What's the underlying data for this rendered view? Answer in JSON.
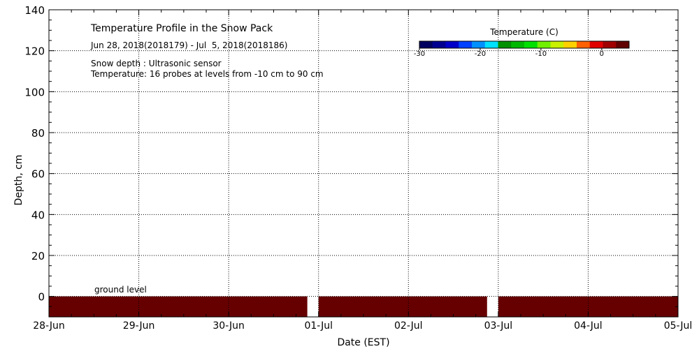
{
  "chart_data": {
    "type": "heatmap",
    "title": "Temperature Profile in the Snow Pack",
    "subtitle": "Jun 28, 2018(2018179) - Jul  5, 2018(2018186)",
    "notes": [
      "Snow depth : Ultrasonic sensor",
      "Temperature: 16 probes at levels from -10 cm to 90 cm"
    ],
    "annotation": "ground level",
    "xlabel": "Date (EST)",
    "ylabel": "Depth, cm",
    "x_ticks": [
      "28-Jun",
      "29-Jun",
      "30-Jun",
      "01-Jul",
      "02-Jul",
      "03-Jul",
      "04-Jul",
      "05-Jul"
    ],
    "xlim": [
      "2018-06-28",
      "2018-07-05"
    ],
    "ylim": [
      -10,
      140
    ],
    "y_ticks": [
      0,
      20,
      40,
      60,
      80,
      100,
      120,
      140
    ],
    "grid": true,
    "colorbar": {
      "title": "Temperature (C)",
      "ticks": [
        -30,
        -20,
        -10,
        0
      ],
      "colors": [
        "#000060",
        "#000090",
        "#0000c8",
        "#0040ff",
        "#0090ff",
        "#00e0ff",
        "#009000",
        "#00b800",
        "#00e000",
        "#70f000",
        "#c8f000",
        "#ffd000",
        "#ff6000",
        "#e00000",
        "#a00000",
        "#600000"
      ]
    },
    "data_fill_color": "#660000",
    "segments": [
      {
        "start": "2018-06-28 00:00",
        "end": "2018-06-30 21:00",
        "depth_range": [
          -10,
          0
        ],
        "temperature_color": "#660000"
      },
      {
        "start": "2018-06-30 21:00",
        "end": "2018-07-01 00:00",
        "depth_range": [
          -10,
          0
        ],
        "temperature_color": "none"
      },
      {
        "start": "2018-07-01 00:00",
        "end": "2018-07-02 21:00",
        "depth_range": [
          -10,
          0
        ],
        "temperature_color": "#660000"
      },
      {
        "start": "2018-07-02 21:00",
        "end": "2018-07-03 00:00",
        "depth_range": [
          -10,
          0
        ],
        "temperature_color": "none"
      },
      {
        "start": "2018-07-03 00:00",
        "end": "2018-07-05 00:00",
        "depth_range": [
          -10,
          0
        ],
        "temperature_color": "#660000"
      }
    ]
  }
}
